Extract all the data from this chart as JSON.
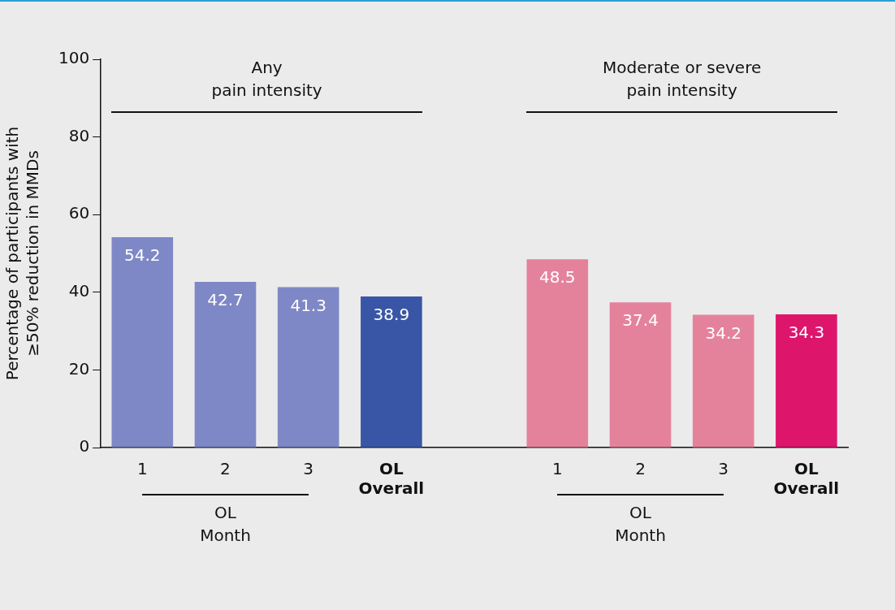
{
  "chart_data": {
    "type": "bar",
    "categories": [
      "1",
      "2",
      "3",
      "OL Overall",
      null,
      "1",
      "2",
      "3",
      "OL Overall"
    ],
    "values": [
      54.2,
      42.7,
      41.3,
      38.9,
      null,
      48.5,
      37.4,
      34.2,
      34.3
    ],
    "colors": [
      "#7f88c6",
      "#7f88c6",
      "#7f88c6",
      "#3956a6",
      null,
      "#e5829b",
      "#e5829b",
      "#e5829b",
      "#dd166c"
    ],
    "ylabel": "Percentage of participants with ≥50% reduction in MMDs",
    "ylim": [
      0,
      100
    ],
    "yticks": [
      0,
      20,
      40,
      60,
      80,
      100
    ],
    "grid": false,
    "legend": false,
    "data_labels": true,
    "annotations": [
      "Any\npain intensity",
      "Moderate or severe\npain intensity",
      "OL\nMonth",
      "OL\nMonth"
    ]
  }
}
